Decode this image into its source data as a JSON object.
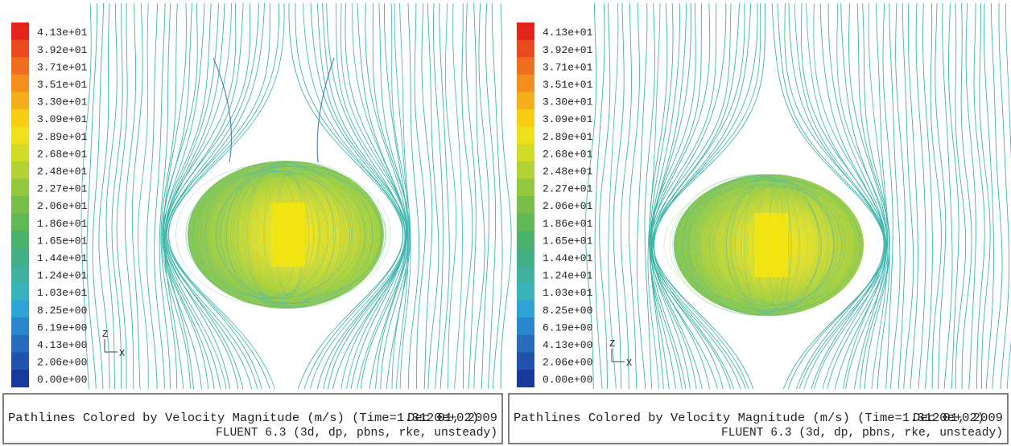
{
  "panels": [
    {
      "colorbar": {
        "labels": [
          "4.13e+01",
          "3.92e+01",
          "3.71e+01",
          "3.51e+01",
          "3.30e+01",
          "3.09e+01",
          "2.89e+01",
          "2.68e+01",
          "2.48e+01",
          "2.27e+01",
          "2.06e+01",
          "1.86e+01",
          "1.65e+01",
          "1.44e+01",
          "1.24e+01",
          "1.03e+01",
          "8.25e+00",
          "6.19e+00",
          "4.13e+00",
          "2.06e+00",
          "0.00e+00"
        ]
      },
      "axes": {
        "z": "Z",
        "x": "X"
      },
      "caption": {
        "title": "Pathlines Colored by Velocity Magnitude (m/s)  (Time=1.3120e+02)",
        "date": "Dec 01, 2009",
        "solver": "FLUENT 6.3 (3d, dp, pbns, rke, unsteady)"
      }
    },
    {
      "colorbar": {
        "labels": [
          "4.13e+01",
          "3.92e+01",
          "3.71e+01",
          "3.51e+01",
          "3.30e+01",
          "3.09e+01",
          "2.89e+01",
          "2.68e+01",
          "2.48e+01",
          "2.27e+01",
          "2.06e+01",
          "1.86e+01",
          "1.65e+01",
          "1.44e+01",
          "1.24e+01",
          "1.03e+01",
          "8.25e+00",
          "6.19e+00",
          "4.13e+00",
          "2.06e+00",
          "0.00e+00"
        ]
      },
      "axes": {
        "z": "Z",
        "x": "X"
      },
      "caption": {
        "title": "Pathlines Colored by Velocity Magnitude (m/s)  (Time=1.3120e+02)",
        "date": "Dec 01, 2009",
        "solver": "FLUENT 6.3 (3d, dp, pbns, rke, unsteady)"
      }
    }
  ]
}
